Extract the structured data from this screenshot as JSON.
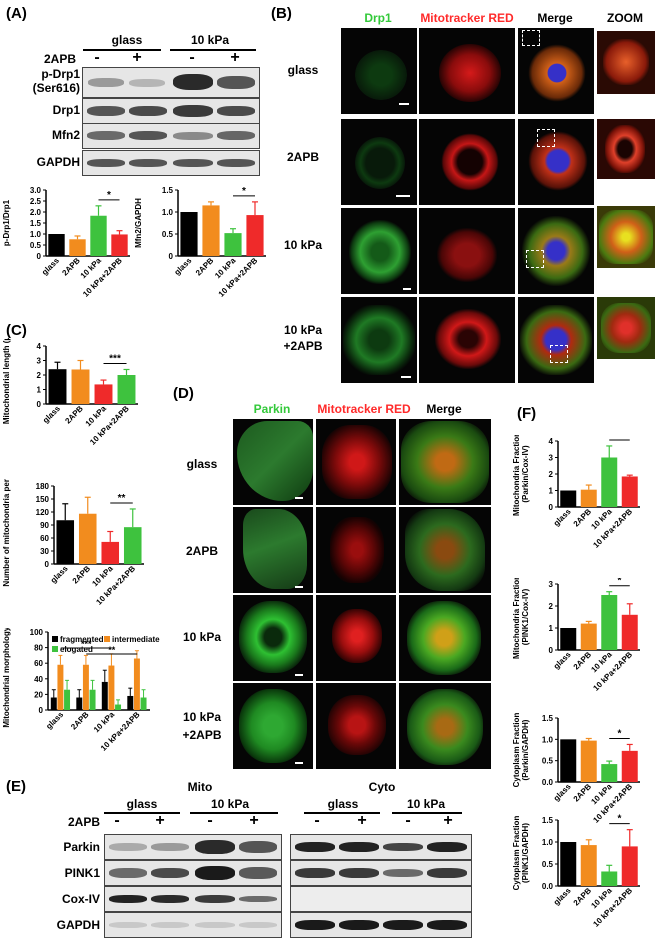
{
  "panels": {
    "A": "(A)",
    "B": "(B)",
    "C": "(C)",
    "D": "(D)",
    "E": "(E)",
    "F": "(F)"
  },
  "a": {
    "group_labels": [
      "glass",
      "10 kPa"
    ],
    "treatment_label": "2APB",
    "signs": [
      "-",
      "+",
      "-",
      "+"
    ],
    "rows": [
      "p-Drp1\n(Ser616)",
      "Drp1",
      "Mfn2",
      "GAPDH"
    ]
  },
  "b": {
    "columns": [
      "Drp1",
      "Mitotracker RED",
      "Merge",
      "ZOOM"
    ],
    "rows": [
      "glass",
      "2APB",
      "10 kPa",
      "10 kPa\n+2APB"
    ]
  },
  "d": {
    "columns": [
      "Parkin",
      "Mitotracker RED",
      "Merge"
    ],
    "rows": [
      "glass",
      "2APB",
      "10 kPa",
      "10 kPa\n+2APB"
    ]
  },
  "e": {
    "sections": [
      "Mito",
      "Cyto"
    ],
    "group_labels": [
      "glass",
      "10 kPa",
      "glass",
      "10 kPa"
    ],
    "treatment_label": "2APB",
    "signs": [
      "-",
      "+",
      "-",
      "+",
      "-",
      "+",
      "-",
      "+"
    ],
    "rows": [
      "Parkin",
      "PINK1",
      "Cox-IV",
      "GAPDH"
    ]
  },
  "colors": {
    "black": "#000000",
    "orange": "#f28c1e",
    "green": "#3ec23e",
    "red": "#ef2a2a",
    "mic_green": "#33c93a",
    "mic_red": "#ff2a2a",
    "mic_blue": "#3530c8"
  },
  "chart_data": [
    {
      "id": "a1",
      "type": "bar",
      "categories": [
        "glass",
        "2APB",
        "10 kPa",
        "10 kPa+2APB"
      ],
      "values": [
        1.0,
        0.76,
        1.83,
        0.98
      ],
      "errors": [
        0,
        0.15,
        0.45,
        0.17
      ],
      "colors": [
        "#000000",
        "#f28c1e",
        "#3ec23e",
        "#ef2a2a"
      ],
      "ylabel": "p-Drp1/Drp1",
      "ylim": [
        0,
        3
      ],
      "yticks": [
        0,
        0.5,
        1.0,
        1.5,
        2.0,
        2.5,
        3.0
      ],
      "yticklabels": [
        "0",
        "0.5",
        "1.0",
        "1.5",
        "2.0",
        "2.5",
        "3.0"
      ],
      "sig": [
        {
          "from": 2,
          "to": 3,
          "label": "*"
        }
      ]
    },
    {
      "id": "a2",
      "type": "bar",
      "categories": [
        "glass",
        "2APB",
        "10 kPa",
        "10 kPa+2APB"
      ],
      "values": [
        1.0,
        1.15,
        0.52,
        0.93
      ],
      "errors": [
        0,
        0.08,
        0.1,
        0.3
      ],
      "colors": [
        "#000000",
        "#f28c1e",
        "#3ec23e",
        "#ef2a2a"
      ],
      "ylabel": "Mfn2/GAPDH",
      "ylim": [
        0,
        1.5
      ],
      "yticks": [
        0,
        0.5,
        1.0,
        1.5
      ],
      "yticklabels": [
        "0",
        "0.5",
        "1.0",
        "1.5"
      ],
      "sig": [
        {
          "from": 2,
          "to": 3,
          "label": "*"
        }
      ]
    },
    {
      "id": "c1",
      "type": "bar",
      "categories": [
        "glass",
        "2APB",
        "10 kPa",
        "10 kPa+2APB"
      ],
      "values": [
        2.4,
        2.38,
        1.35,
        2.0
      ],
      "errors": [
        0.48,
        0.62,
        0.3,
        0.38
      ],
      "colors": [
        "#000000",
        "#f28c1e",
        "#ef2a2a",
        "#3ec23e"
      ],
      "ylabel": "Mitochondrial length (μm)",
      "ylim": [
        0,
        4
      ],
      "yticks": [
        0,
        1,
        2,
        3,
        4
      ],
      "yticklabels": [
        "0",
        "1",
        "2",
        "3",
        "4"
      ],
      "sig": [
        {
          "from": 2,
          "to": 3,
          "label": "***"
        }
      ]
    },
    {
      "id": "c2",
      "type": "bar",
      "categories": [
        "glass",
        "2APB",
        "10 kPa",
        "10 kPa+2APB"
      ],
      "values": [
        101,
        116,
        51,
        85
      ],
      "errors": [
        38,
        38,
        24,
        42
      ],
      "colors": [
        "#000000",
        "#f28c1e",
        "#ef2a2a",
        "#3ec23e"
      ],
      "ylabel": "Number of mitochondria per cell",
      "ylim": [
        0,
        180
      ],
      "yticks": [
        0,
        30,
        60,
        90,
        120,
        150,
        180
      ],
      "yticklabels": [
        "0",
        "30",
        "60",
        "90",
        "120",
        "150",
        "180"
      ],
      "sig": [
        {
          "from": 2,
          "to": 3,
          "label": "**"
        }
      ]
    },
    {
      "id": "c3",
      "type": "bar",
      "categories": [
        "glass",
        "2APB",
        "10 kPa",
        "10 kPa+2APB"
      ],
      "series": [
        {
          "name": "fragmented",
          "values": [
            16,
            16,
            36,
            18
          ],
          "errors": [
            10,
            10,
            15,
            10
          ],
          "color": "#000000"
        },
        {
          "name": "intermediate",
          "values": [
            58,
            58,
            57,
            66
          ],
          "errors": [
            12,
            12,
            15,
            10
          ],
          "color": "#f28c1e"
        },
        {
          "name": "elogated",
          "values": [
            26,
            26,
            7,
            16
          ],
          "errors": [
            12,
            12,
            6,
            10
          ],
          "color": "#3ec23e"
        }
      ],
      "ylabel": "Mitochondrial morphology(%)",
      "ylim": [
        0,
        100
      ],
      "yticks": [
        0,
        20,
        40,
        60,
        80,
        100
      ],
      "yticklabels": [
        "0",
        "20",
        "40",
        "60",
        "80",
        "100"
      ],
      "sig": [
        {
          "from": 0,
          "to": 2,
          "label": "***",
          "series": 0
        },
        {
          "from": 1,
          "to": 3,
          "label": "**",
          "series": 1
        }
      ]
    },
    {
      "id": "f1",
      "type": "bar",
      "categories": [
        "glass",
        "2APB",
        "10 kPa",
        "10 kPa+2APB"
      ],
      "values": [
        1.0,
        1.05,
        3.0,
        1.85
      ],
      "errors": [
        0,
        0.28,
        0.7,
        0.08
      ],
      "colors": [
        "#000000",
        "#f28c1e",
        "#3ec23e",
        "#ef2a2a"
      ],
      "ylabel": "Mitochondria Fraction\n(Parkin/Cox-IV)",
      "ylim": [
        0,
        4
      ],
      "yticks": [
        0,
        1,
        2,
        3,
        4
      ],
      "yticklabels": [
        "0",
        "1",
        "2",
        "3",
        "4"
      ],
      "sig": [
        {
          "from": 2,
          "to": 3,
          "label": "*"
        }
      ]
    },
    {
      "id": "f2",
      "type": "bar",
      "categories": [
        "glass",
        "2APB",
        "10 kPa",
        "10 kPa+2APB"
      ],
      "values": [
        1.0,
        1.2,
        2.5,
        1.6
      ],
      "errors": [
        0,
        0.1,
        0.15,
        0.5
      ],
      "colors": [
        "#000000",
        "#f28c1e",
        "#3ec23e",
        "#ef2a2a"
      ],
      "ylabel": "Mitochondria Fraction\n(PINK1/Cox-IV)",
      "ylim": [
        0,
        3
      ],
      "yticks": [
        0,
        1,
        2,
        3
      ],
      "yticklabels": [
        "0",
        "1",
        "2",
        "3"
      ],
      "sig": [
        {
          "from": 2,
          "to": 3,
          "label": "*"
        }
      ]
    },
    {
      "id": "f3",
      "type": "bar",
      "categories": [
        "glass",
        "2APB",
        "10 kPa",
        "10 kPa+2APB"
      ],
      "values": [
        1.0,
        0.97,
        0.42,
        0.73
      ],
      "errors": [
        0,
        0.05,
        0.07,
        0.15
      ],
      "colors": [
        "#000000",
        "#f28c1e",
        "#3ec23e",
        "#ef2a2a"
      ],
      "ylabel": "Cytoplasm Fraction\n(Parkin/GAPDH)",
      "ylim": [
        0,
        1.5
      ],
      "yticks": [
        0,
        0.5,
        1.0,
        1.5
      ],
      "yticklabels": [
        "0.0",
        "0.5",
        "1.0",
        "1.5"
      ],
      "sig": [
        {
          "from": 2,
          "to": 3,
          "label": "*"
        }
      ]
    },
    {
      "id": "f4",
      "type": "bar",
      "categories": [
        "glass",
        "2APB",
        "10 kPa",
        "10 kPa+2APB"
      ],
      "values": [
        1.0,
        0.93,
        0.33,
        0.9
      ],
      "errors": [
        0,
        0.12,
        0.14,
        0.38
      ],
      "colors": [
        "#000000",
        "#f28c1e",
        "#3ec23e",
        "#ef2a2a"
      ],
      "ylabel": "Cytoplasm Fraction\n(PINK1/GAPDH)",
      "ylim": [
        0,
        1.5
      ],
      "yticks": [
        0,
        0.5,
        1.0,
        1.5
      ],
      "yticklabels": [
        "0.0",
        "0.5",
        "1.0",
        "1.5"
      ],
      "sig": [
        {
          "from": 2,
          "to": 3,
          "label": "*"
        }
      ]
    }
  ]
}
